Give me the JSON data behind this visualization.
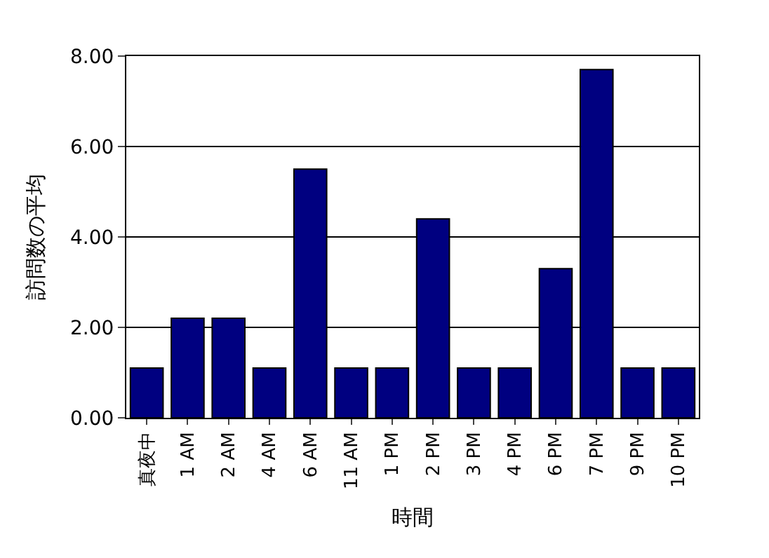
{
  "chart_data": {
    "type": "bar",
    "xlabel": "時間",
    "ylabel": "訪問数の平均",
    "categories": [
      "真夜中",
      "1 AM",
      "2 AM",
      "4 AM",
      "6 AM",
      "11 AM",
      "1 PM",
      "2 PM",
      "3 PM",
      "4 PM",
      "6 PM",
      "7 PM",
      "9 PM",
      "10 PM"
    ],
    "values": [
      1.1,
      2.2,
      2.2,
      1.1,
      5.5,
      1.1,
      1.1,
      4.4,
      1.1,
      1.1,
      3.3,
      7.7,
      1.1,
      1.1
    ],
    "color": "#000080",
    "ylim": [
      0,
      8
    ],
    "yticks": [
      {
        "value": 0,
        "label": "0.00"
      },
      {
        "value": 2,
        "label": "2.00"
      },
      {
        "value": 4,
        "label": "4.00"
      },
      {
        "value": 6,
        "label": "6.00"
      },
      {
        "value": 8,
        "label": "8.00"
      }
    ],
    "grid": "y"
  }
}
